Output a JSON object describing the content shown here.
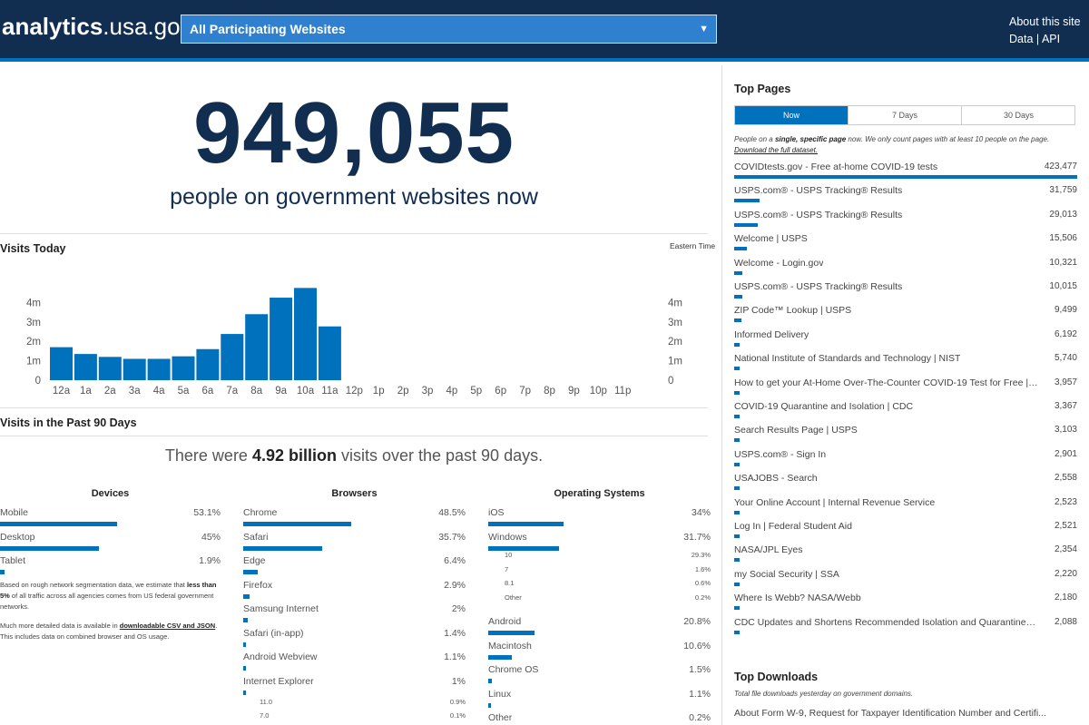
{
  "header": {
    "logo_bold": "analytics",
    "logo_rest": ".usa.gov",
    "agency_select": "All Participating Websites",
    "about_link": "About this site",
    "data_link": "Data",
    "separator": "|",
    "api_link": "API"
  },
  "realtime": {
    "count": "949,055",
    "label": "people on government websites now"
  },
  "visits_today": {
    "title": "Visits Today",
    "timezone": "Eastern Time"
  },
  "chart_data": {
    "type": "bar",
    "categories": [
      "12a",
      "1a",
      "2a",
      "3a",
      "4a",
      "5a",
      "6a",
      "7a",
      "8a",
      "9a",
      "10a",
      "11a",
      "12p",
      "1p",
      "2p",
      "3p",
      "4p",
      "5p",
      "6p",
      "7p",
      "8p",
      "9p",
      "10p",
      "11p"
    ],
    "values": [
      1700000,
      1350000,
      1200000,
      1100000,
      1100000,
      1230000,
      1600000,
      2380000,
      3400000,
      4250000,
      4750000,
      2770000,
      null,
      null,
      null,
      null,
      null,
      null,
      null,
      null,
      null,
      null,
      null,
      null
    ],
    "y_ticks": [
      "0",
      "1m",
      "2m",
      "3m",
      "4m"
    ],
    "ylim": [
      0,
      5000000
    ],
    "bar_color": "#0071bc"
  },
  "visits_90": {
    "title": "Visits in the Past 90 Days",
    "text_before": "There were ",
    "text_bold": "4.92 billion",
    "text_after": " visits over the past 90 days."
  },
  "devices": {
    "title": "Devices",
    "items": [
      {
        "name": "Mobile",
        "value": "53.1%",
        "pct": 53.1
      },
      {
        "name": "Desktop",
        "value": "45%",
        "pct": 45
      },
      {
        "name": "Tablet",
        "value": "1.9%",
        "pct": 1.9
      }
    ],
    "note1_a": "Based on rough network segmentation data, we estimate that ",
    "note1_b": "less than 5%",
    "note1_c": " of all traffic across all agencies comes from US federal government networks.",
    "note2_a": "Much more detailed data is available in ",
    "note2_b": "downloadable CSV and JSON",
    "note2_c": ". This includes data on combined browser and OS usage."
  },
  "browsers": {
    "title": "Browsers",
    "items": [
      {
        "name": "Chrome",
        "value": "48.5%",
        "pct": 48.5
      },
      {
        "name": "Safari",
        "value": "35.7%",
        "pct": 35.7
      },
      {
        "name": "Edge",
        "value": "6.4%",
        "pct": 6.4
      },
      {
        "name": "Firefox",
        "value": "2.9%",
        "pct": 2.9
      },
      {
        "name": "Samsung Internet",
        "value": "2%",
        "pct": 2
      },
      {
        "name": "Safari (in-app)",
        "value": "1.4%",
        "pct": 1.4
      },
      {
        "name": "Android Webview",
        "value": "1.1%",
        "pct": 1.1
      },
      {
        "name": "Internet Explorer",
        "value": "1%",
        "pct": 1
      }
    ],
    "ie_sub": [
      {
        "name": "11.0",
        "value": "0.9%"
      },
      {
        "name": "7.0",
        "value": "0.1%"
      }
    ]
  },
  "os": {
    "title": "Operating Systems",
    "ios": {
      "name": "iOS",
      "value": "34%",
      "pct": 34
    },
    "windows": {
      "name": "Windows",
      "value": "31.7%",
      "pct": 31.7
    },
    "windows_sub": [
      {
        "name": "10",
        "value": "29.3%"
      },
      {
        "name": "7",
        "value": "1.6%"
      },
      {
        "name": "8.1",
        "value": "0.6%"
      },
      {
        "name": "Other",
        "value": "0.2%"
      }
    ],
    "rest": [
      {
        "name": "Android",
        "value": "20.8%",
        "pct": 20.8
      },
      {
        "name": "Macintosh",
        "value": "10.6%",
        "pct": 10.6
      },
      {
        "name": "Chrome OS",
        "value": "1.5%",
        "pct": 1.5
      },
      {
        "name": "Linux",
        "value": "1.1%",
        "pct": 1.1
      },
      {
        "name": "Other",
        "value": "0.2%",
        "pct": 0.2
      }
    ]
  },
  "top_pages": {
    "title": "Top Pages",
    "tabs": [
      "Now",
      "7 Days",
      "30 Days"
    ],
    "desc_a": "People on a ",
    "desc_b": "single, specific page",
    "desc_c": " now. We only count pages with at least 10 people on the page.",
    "desc_link": "Download the full dataset.",
    "items": [
      {
        "name": "COVIDtests.gov - Free at-home COVID-19 tests",
        "value": "423,477",
        "n": 423477
      },
      {
        "name": "USPS.com® - USPS Tracking® Results",
        "value": "31,759",
        "n": 31759
      },
      {
        "name": "USPS.com® - USPS Tracking® Results",
        "value": "29,013",
        "n": 29013
      },
      {
        "name": "Welcome | USPS",
        "value": "15,506",
        "n": 15506
      },
      {
        "name": "Welcome - Login.gov",
        "value": "10,321",
        "n": 10321
      },
      {
        "name": "USPS.com® - USPS Tracking® Results",
        "value": "10,015",
        "n": 10015
      },
      {
        "name": "ZIP Code™ Lookup | USPS",
        "value": "9,499",
        "n": 9499
      },
      {
        "name": "Informed Delivery",
        "value": "6,192",
        "n": 6192
      },
      {
        "name": "National Institute of Standards and Technology | NIST",
        "value": "5,740",
        "n": 5740
      },
      {
        "name": "How to get your At-Home Over-The-Counter COVID-19 Test for Free | CMS",
        "value": "3,957",
        "n": 3957
      },
      {
        "name": "COVID-19 Quarantine and Isolation | CDC",
        "value": "3,367",
        "n": 3367
      },
      {
        "name": "Search Results Page | USPS",
        "value": "3,103",
        "n": 3103
      },
      {
        "name": "USPS.com® - Sign In",
        "value": "2,901",
        "n": 2901
      },
      {
        "name": "USAJOBS - Search",
        "value": "2,558",
        "n": 2558
      },
      {
        "name": "Your Online Account | Internal Revenue Service",
        "value": "2,523",
        "n": 2523
      },
      {
        "name": "Log In | Federal Student Aid",
        "value": "2,521",
        "n": 2521
      },
      {
        "name": "NASA/JPL Eyes",
        "value": "2,354",
        "n": 2354
      },
      {
        "name": "my Social Security | SSA",
        "value": "2,220",
        "n": 2220
      },
      {
        "name": "Where Is Webb? NASA/Webb",
        "value": "2,180",
        "n": 2180
      },
      {
        "name": "CDC Updates and Shortens Recommended Isolation and Quarantine Pe...",
        "value": "2,088",
        "n": 2088
      }
    ]
  },
  "top_downloads": {
    "title": "Top Downloads",
    "desc": "Total file downloads yesterday on government domains.",
    "first_item": "About Form W-9, Request for Taxpayer Identification Number and Certifi..."
  }
}
